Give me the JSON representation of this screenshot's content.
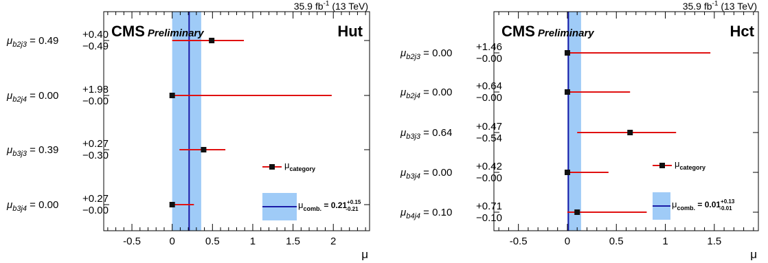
{
  "chart_data": [
    {
      "type": "scatter",
      "tag": "Hut",
      "experiment": "CMS",
      "status": "Preliminary",
      "lumi": "35.9 fb",
      "lumi_exp": "-1",
      "energy": " (13 TeV)",
      "xlabel": "μ",
      "xlim": [
        -0.85,
        2.45
      ],
      "xticks": [
        "-0.5",
        "0",
        "0.5",
        "1",
        "1.5",
        "2"
      ],
      "combined": {
        "value": 0.21,
        "err_up": 0.15,
        "err_down": 0.21,
        "label": "μ",
        "label_sub": "comb.",
        "value_text": " = 0.21",
        "err_up_text": "+0.15",
        "err_down_text": "-0.21"
      },
      "legend_marker_label": "μ",
      "legend_marker_sub": "category",
      "categories": [
        {
          "sym": "μ",
          "sub": "b2j3",
          "value_text": " = 0.49",
          "up_text": "+0.40",
          "down_text": "−0.49",
          "value": 0.49,
          "err_up": 0.4,
          "err_down": 0.49
        },
        {
          "sym": "μ",
          "sub": "b2j4",
          "value_text": " = 0.00",
          "up_text": "+1.98",
          "down_text": "−0.00",
          "value": 0.0,
          "err_up": 1.98,
          "err_down": 0.0
        },
        {
          "sym": "μ",
          "sub": "b3j3",
          "value_text": " = 0.39",
          "up_text": "+0.27",
          "down_text": "−0.30",
          "value": 0.39,
          "err_up": 0.27,
          "err_down": 0.3
        },
        {
          "sym": "μ",
          "sub": "b3j4",
          "value_text": " = 0.00",
          "up_text": "+0.27",
          "down_text": "−0.00",
          "value": 0.0,
          "err_up": 0.27,
          "err_down": 0.0
        }
      ]
    },
    {
      "type": "scatter",
      "tag": "Hct",
      "experiment": "CMS",
      "status": "Preliminary",
      "lumi": "35.9 fb",
      "lumi_exp": "-1",
      "energy": " (13 TeV)",
      "xlabel": "μ",
      "xlim": [
        -0.75,
        1.95
      ],
      "xticks": [
        "-0.5",
        "0",
        "0.5",
        "1",
        "1.5"
      ],
      "combined": {
        "value": 0.01,
        "err_up": 0.13,
        "err_down": 0.01,
        "label": "μ",
        "label_sub": "comb.",
        "value_text": " = 0.01",
        "err_up_text": "+0.13",
        "err_down_text": "-0.01"
      },
      "legend_marker_label": "μ",
      "legend_marker_sub": "category",
      "categories": [
        {
          "sym": "μ",
          "sub": "b2j3",
          "value_text": " = 0.00",
          "up_text": "+1.46",
          "down_text": "−0.00",
          "value": 0.0,
          "err_up": 1.46,
          "err_down": 0.0
        },
        {
          "sym": "μ",
          "sub": "b2j4",
          "value_text": " = 0.00",
          "up_text": "+0.64",
          "down_text": "−0.00",
          "value": 0.0,
          "err_up": 0.64,
          "err_down": 0.0
        },
        {
          "sym": "μ",
          "sub": "b3j3",
          "value_text": " = 0.64",
          "up_text": "+0.47",
          "down_text": "−0.54",
          "value": 0.64,
          "err_up": 0.47,
          "err_down": 0.54
        },
        {
          "sym": "μ",
          "sub": "b3j4",
          "value_text": " = 0.00",
          "up_text": "+0.42",
          "down_text": "−0.00",
          "value": 0.0,
          "err_up": 0.42,
          "err_down": 0.0
        },
        {
          "sym": "μ",
          "sub": "b4j4",
          "value_text": " = 0.10",
          "up_text": "+0.71",
          "down_text": "−0.10",
          "value": 0.1,
          "err_up": 0.71,
          "err_down": 0.1
        }
      ]
    }
  ]
}
